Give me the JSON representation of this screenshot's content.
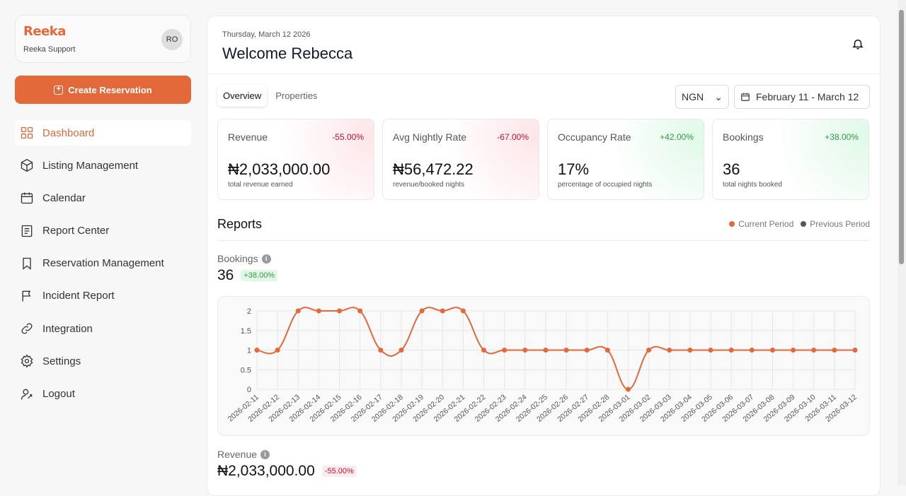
{
  "brand": {
    "logo": "Reeka",
    "org": "Reeka Support",
    "avatar": "RO"
  },
  "create_label": "Create Reservation",
  "nav": [
    {
      "label": "Dashboard",
      "icon": "grid-icon",
      "active": true
    },
    {
      "label": "Listing Management",
      "icon": "box-icon"
    },
    {
      "label": "Calendar",
      "icon": "calendar-icon"
    },
    {
      "label": "Report Center",
      "icon": "report-icon"
    },
    {
      "label": "Reservation Management",
      "icon": "bookmark-icon"
    },
    {
      "label": "Incident Report",
      "icon": "flag-icon"
    },
    {
      "label": "Integration",
      "icon": "link-icon"
    },
    {
      "label": "Settings",
      "icon": "gear-icon"
    },
    {
      "label": "Logout",
      "icon": "logout-icon"
    }
  ],
  "header": {
    "date": "Thursday, March 12 2026",
    "welcome": "Welcome Rebecca"
  },
  "tabs": [
    "Overview",
    "Properties"
  ],
  "currency": "NGN",
  "date_range": "February 11 - March 12",
  "kpis": [
    {
      "title": "Revenue",
      "change": "-55.00%",
      "value": "₦2,033,000.00",
      "sub": "total revenue earned",
      "trend": "down"
    },
    {
      "title": "Avg Nightly Rate",
      "change": "-67.00%",
      "value": "₦56,472.22",
      "sub": "revenue/booked nights",
      "trend": "down"
    },
    {
      "title": "Occupancy Rate",
      "change": "+42.00%",
      "value": "17%",
      "sub": "percentage of occupied nights",
      "trend": "up"
    },
    {
      "title": "Bookings",
      "change": "+38.00%",
      "value": "36",
      "sub": "total nights booked",
      "trend": "up"
    }
  ],
  "reports": {
    "title": "Reports",
    "legend": [
      "Current Period",
      "Previous Period"
    ],
    "bookings": {
      "title": "Bookings",
      "value": "36",
      "change": "+38.00%"
    },
    "revenue": {
      "title": "Revenue",
      "value": "₦2,033,000.00",
      "change": "-55.00%"
    }
  },
  "colors": {
    "accent": "#e3683a",
    "previous": "#555555",
    "up": "#2e9a4a",
    "down": "#c8102e"
  },
  "chart_data": {
    "type": "line",
    "x": [
      "2026-02-11",
      "2026-02-12",
      "2026-02-13",
      "2026-02-14",
      "2026-02-15",
      "2026-02-16",
      "2026-02-17",
      "2026-02-18",
      "2026-02-19",
      "2026-02-20",
      "2026-02-21",
      "2026-02-22",
      "2026-02-23",
      "2026-02-24",
      "2026-02-25",
      "2026-02-26",
      "2026-02-27",
      "2026-02-28",
      "2026-03-01",
      "2026-03-02",
      "2026-03-03",
      "2026-03-04",
      "2026-03-05",
      "2026-03-06",
      "2026-03-07",
      "2026-03-08",
      "2026-03-09",
      "2026-03-10",
      "2026-03-11",
      "2026-03-12"
    ],
    "series": [
      {
        "name": "Current Period",
        "values": [
          1,
          1,
          2,
          2,
          2,
          2,
          1,
          1,
          2,
          2,
          2,
          1,
          1,
          1,
          1,
          1,
          1,
          1,
          0,
          1,
          1,
          1,
          1,
          1,
          1,
          1,
          1,
          1,
          1,
          1
        ]
      }
    ],
    "yticks": [
      "0",
      "0.5",
      "1",
      "1.5",
      "2"
    ],
    "ylim": [
      0,
      2
    ],
    "grid": true,
    "smooth": true
  }
}
